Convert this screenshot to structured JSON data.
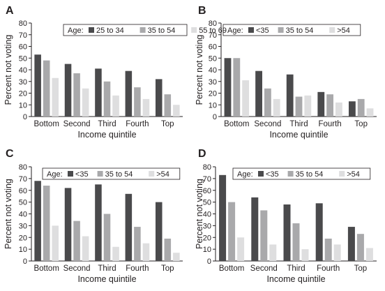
{
  "colors": {
    "series1": "#4a4a4c",
    "series2": "#a9a9ab",
    "series3": "#dededf",
    "axis": "#231f20"
  },
  "chart_data": [
    {
      "type": "bar",
      "panel": "A",
      "categories": [
        "Bottom",
        "Second",
        "Third",
        "Fourth",
        "Top"
      ],
      "legend_title": "Age:",
      "legend_placement": "top-right",
      "series": [
        {
          "name": "25 to 34",
          "values": [
            53,
            45,
            41,
            39,
            32
          ]
        },
        {
          "name": "35 to 54",
          "values": [
            48,
            37,
            30,
            25,
            19
          ]
        },
        {
          "name": "55 to 69",
          "values": [
            33,
            24,
            18,
            15,
            10
          ]
        }
      ],
      "xlabel": "Income quintile",
      "ylabel": "Percent not voting",
      "ylim": [
        0,
        80
      ],
      "yticks": [
        0,
        10,
        20,
        30,
        40,
        50,
        60,
        70,
        80
      ],
      "grid": false
    },
    {
      "type": "bar",
      "panel": "B",
      "categories": [
        "Bottom",
        "Second",
        "Third",
        "Fourth",
        "Top"
      ],
      "legend_title": "Age:",
      "legend_placement": "top-right",
      "series": [
        {
          "name": "<35",
          "values": [
            50,
            39,
            36,
            21,
            13
          ]
        },
        {
          "name": "35 to 54",
          "values": [
            50,
            24,
            17,
            19,
            15
          ]
        },
        {
          "name": ">54",
          "values": [
            31,
            15,
            18,
            12,
            7
          ]
        }
      ],
      "xlabel": "Income quintile",
      "ylabel": "Percent not voting",
      "ylim": [
        0,
        80
      ],
      "yticks": [
        0,
        10,
        20,
        30,
        40,
        50,
        60,
        70,
        80
      ],
      "grid": false
    },
    {
      "type": "bar",
      "panel": "C",
      "categories": [
        "Bottom",
        "Second",
        "Third",
        "Fourth",
        "Top"
      ],
      "legend_title": "Age:",
      "legend_placement": "top-right",
      "series": [
        {
          "name": "<35",
          "values": [
            68,
            62,
            65,
            57,
            50
          ]
        },
        {
          "name": "35 to 54",
          "values": [
            64,
            34,
            40,
            29,
            19
          ]
        },
        {
          "name": ">54",
          "values": [
            30,
            21,
            12,
            15,
            7
          ]
        }
      ],
      "xlabel": "Income quintile",
      "ylabel": "Percent not voting",
      "ylim": [
        0,
        80
      ],
      "yticks": [
        0,
        10,
        20,
        30,
        40,
        50,
        60,
        70,
        80
      ],
      "grid": false
    },
    {
      "type": "bar",
      "panel": "D",
      "categories": [
        "Bottom",
        "Second",
        "Third",
        "Fourth",
        "Top"
      ],
      "legend_title": "Age:",
      "legend_placement": "top-right",
      "series": [
        {
          "name": "<35",
          "values": [
            73,
            54,
            48,
            49,
            29
          ]
        },
        {
          "name": "35 to 54",
          "values": [
            50,
            43,
            32,
            19,
            23
          ]
        },
        {
          "name": ">54",
          "values": [
            20,
            14,
            10,
            14,
            11
          ]
        }
      ],
      "xlabel": "Income quintile",
      "ylabel": "Percent not voting",
      "ylim": [
        0,
        80
      ],
      "yticks": [
        0,
        10,
        20,
        30,
        40,
        50,
        60,
        70,
        80
      ],
      "grid": false
    }
  ]
}
